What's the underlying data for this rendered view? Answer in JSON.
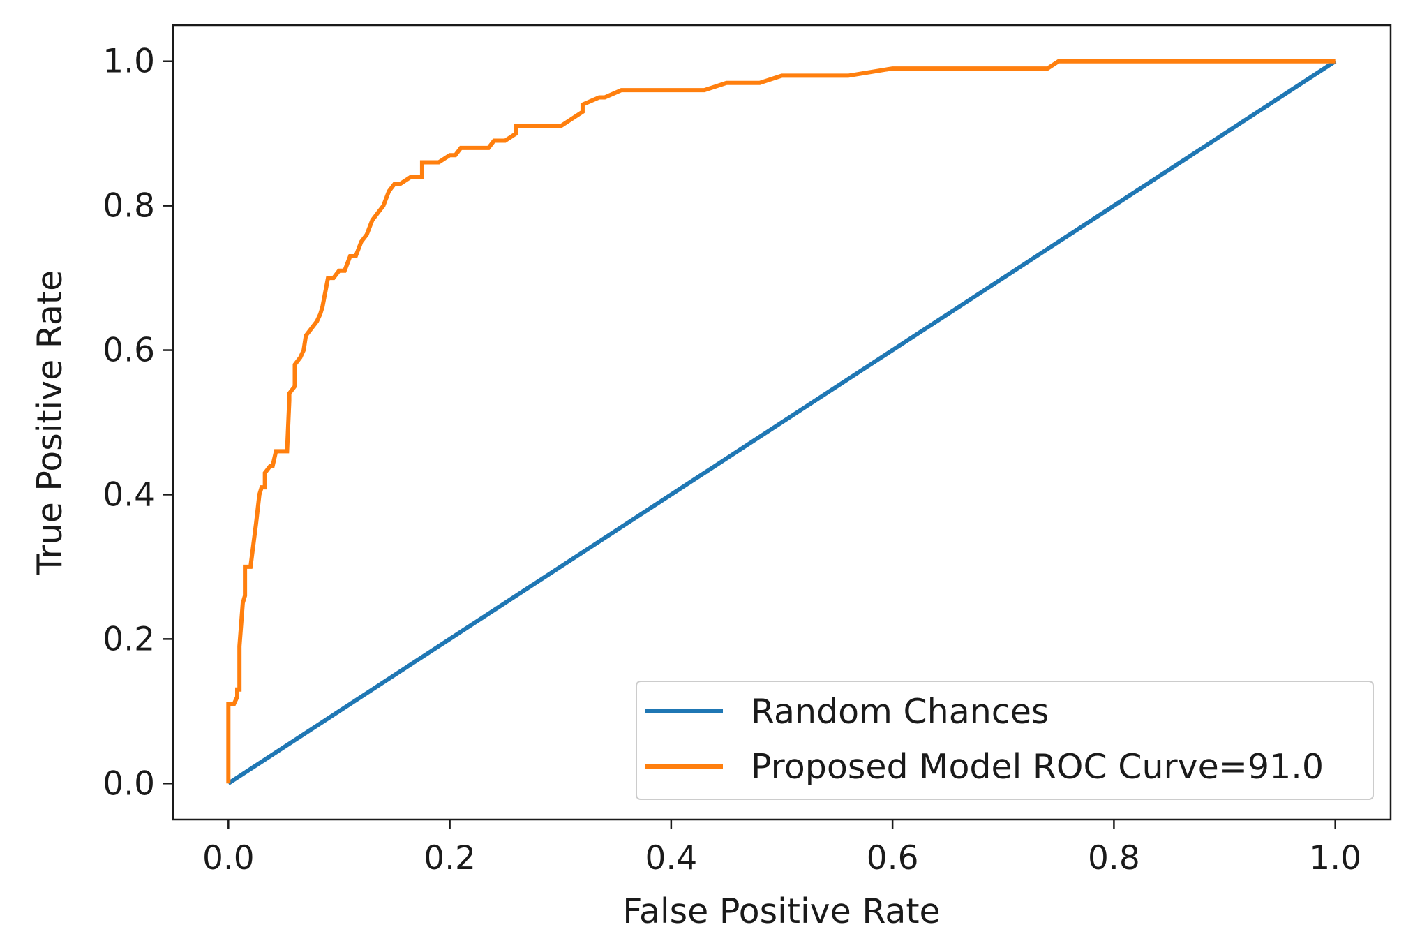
{
  "chart_data": {
    "type": "line",
    "title": "",
    "xlabel": "False Positive Rate",
    "ylabel": "True Positive Rate",
    "xlim": [
      -0.05,
      1.05
    ],
    "ylim": [
      -0.05,
      1.05
    ],
    "xticks": [
      0.0,
      0.2,
      0.4,
      0.6,
      0.8,
      1.0
    ],
    "yticks": [
      0.0,
      0.2,
      0.4,
      0.6,
      0.8,
      1.0
    ],
    "xtick_labels": [
      "0.0",
      "0.2",
      "0.4",
      "0.6",
      "0.8",
      "1.0"
    ],
    "ytick_labels": [
      "0.0",
      "0.2",
      "0.4",
      "0.6",
      "0.8",
      "1.0"
    ],
    "grid": false,
    "legend_position": "bottom-right",
    "series": [
      {
        "name": "Random Chances",
        "color": "#1f77b4",
        "x": [
          0.0,
          1.0
        ],
        "y": [
          0.0,
          1.0
        ]
      },
      {
        "name": "Proposed Model ROC Curve=91.0",
        "color": "#ff7f0e",
        "x": [
          0.0,
          0.0,
          0.005,
          0.008,
          0.008,
          0.01,
          0.01,
          0.013,
          0.015,
          0.015,
          0.018,
          0.02,
          0.02,
          0.025,
          0.028,
          0.03,
          0.033,
          0.033,
          0.038,
          0.04,
          0.043,
          0.045,
          0.048,
          0.053,
          0.055,
          0.055,
          0.06,
          0.06,
          0.065,
          0.068,
          0.07,
          0.075,
          0.08,
          0.083,
          0.085,
          0.09,
          0.095,
          0.1,
          0.105,
          0.11,
          0.115,
          0.12,
          0.125,
          0.13,
          0.135,
          0.14,
          0.145,
          0.15,
          0.155,
          0.165,
          0.17,
          0.175,
          0.175,
          0.19,
          0.2,
          0.205,
          0.21,
          0.22,
          0.235,
          0.24,
          0.25,
          0.26,
          0.26,
          0.28,
          0.3,
          0.31,
          0.32,
          0.32,
          0.335,
          0.34,
          0.355,
          0.36,
          0.41,
          0.43,
          0.45,
          0.48,
          0.5,
          0.56,
          0.6,
          0.69,
          0.7,
          0.74,
          0.75,
          0.86,
          0.87,
          1.0
        ],
        "y": [
          0.0,
          0.11,
          0.11,
          0.12,
          0.13,
          0.13,
          0.19,
          0.25,
          0.26,
          0.3,
          0.3,
          0.3,
          0.3,
          0.36,
          0.4,
          0.41,
          0.41,
          0.43,
          0.44,
          0.44,
          0.46,
          0.46,
          0.46,
          0.46,
          0.53,
          0.54,
          0.55,
          0.58,
          0.59,
          0.6,
          0.62,
          0.63,
          0.64,
          0.65,
          0.66,
          0.7,
          0.7,
          0.71,
          0.71,
          0.73,
          0.73,
          0.75,
          0.76,
          0.78,
          0.79,
          0.8,
          0.82,
          0.83,
          0.83,
          0.84,
          0.84,
          0.84,
          0.86,
          0.86,
          0.87,
          0.87,
          0.88,
          0.88,
          0.88,
          0.89,
          0.89,
          0.9,
          0.91,
          0.91,
          0.91,
          0.92,
          0.93,
          0.94,
          0.95,
          0.95,
          0.96,
          0.96,
          0.96,
          0.96,
          0.97,
          0.97,
          0.98,
          0.98,
          0.99,
          0.99,
          0.99,
          0.99,
          1.0,
          1.0,
          1.0,
          1.0
        ]
      }
    ]
  }
}
